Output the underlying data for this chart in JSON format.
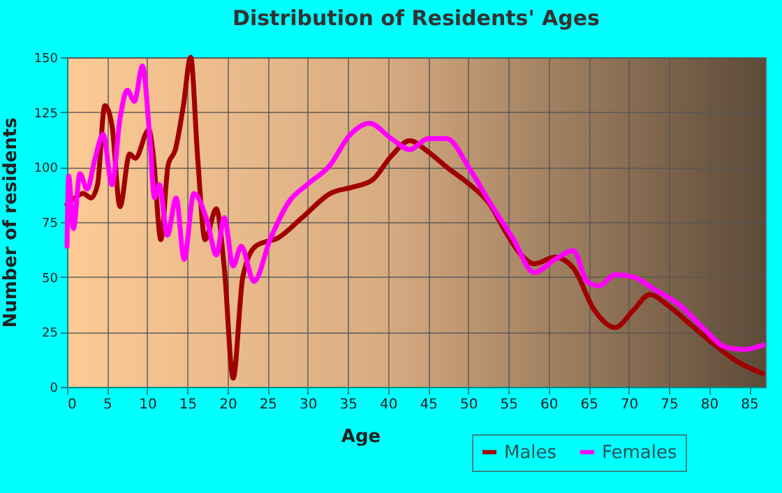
{
  "chart_data": {
    "type": "line",
    "title": "Distribution of Residents' Ages",
    "xlabel": "Age",
    "ylabel": "Number of residents",
    "xlim": [
      0,
      87
    ],
    "xticks": [
      0,
      5,
      10,
      15,
      20,
      25,
      30,
      35,
      40,
      45,
      50,
      55,
      60,
      65,
      70,
      75,
      80,
      85
    ],
    "ylim": [
      0,
      150
    ],
    "yticks": [
      0,
      25,
      50,
      75,
      100,
      125,
      150
    ],
    "grid": true,
    "legend": "bottom right",
    "marker": "none",
    "line_style": "solid",
    "series": [
      {
        "name": "Males",
        "color": "#a00000",
        "x": [
          0,
          1,
          2,
          3,
          3.8,
          4.7,
          5.6,
          6.6,
          7.8,
          8.5,
          10.2,
          10.7,
          11.7,
          12.6,
          13.5,
          14.5,
          15.4,
          16.3,
          17.2,
          18.6,
          19.6,
          20.7,
          21.9,
          23.5,
          26.4,
          29.3,
          32.8,
          35.7,
          38,
          40.4,
          42.7,
          45,
          47.3,
          50.2,
          52.5,
          54.9,
          56.6,
          58.2,
          60.8,
          63.1,
          65.7,
          68.3,
          70.6,
          72.6,
          74.9,
          77.5,
          80.4,
          83.3,
          86.7
        ],
        "values": [
          83,
          86,
          88,
          86,
          92,
          128,
          119,
          82,
          106,
          104,
          117,
          107,
          67,
          101,
          108,
          128,
          150,
          103,
          67,
          81,
          54,
          4,
          50,
          64,
          68,
          77,
          88,
          91,
          94,
          105,
          112,
          107,
          100,
          92,
          84,
          69,
          60,
          56,
          59,
          54,
          35,
          27,
          35,
          42,
          37,
          29,
          20,
          12,
          6
        ]
      },
      {
        "name": "Females",
        "color": "#ff00ff",
        "x": [
          0,
          0.2,
          0.8,
          1.6,
          2.5,
          3.5,
          4.5,
          5.6,
          6.6,
          7.5,
          8.4,
          9.4,
          10.3,
          10.9,
          11.5,
          12.5,
          13.6,
          14.6,
          15.8,
          17.5,
          18.6,
          19.6,
          20.7,
          21.7,
          23.3,
          25.3,
          27.6,
          29.9,
          32.8,
          35.1,
          37.7,
          40.4,
          42.7,
          45,
          47.3,
          50.2,
          53,
          55.5,
          58.2,
          60.8,
          63.1,
          64.8,
          66.3,
          68.3,
          70.6,
          72.9,
          76.4,
          79.2,
          82.1,
          84.4,
          86.7
        ],
        "values": [
          64,
          96,
          72,
          97,
          90,
          104,
          115,
          92,
          122,
          135,
          130,
          146,
          114,
          86,
          92,
          69,
          86,
          58,
          88,
          75,
          60,
          77,
          55,
          64,
          48,
          67,
          84,
          92,
          101,
          114,
          120,
          113,
          108,
          113,
          113,
          99,
          82,
          68,
          52,
          58,
          62,
          48,
          46,
          51,
          50,
          45,
          37,
          27,
          18,
          17,
          19
        ]
      }
    ]
  }
}
